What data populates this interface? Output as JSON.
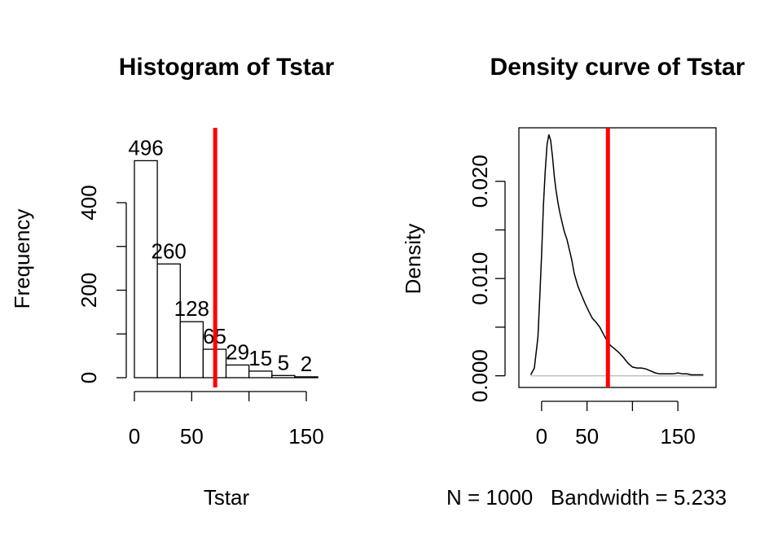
{
  "chart_data": [
    {
      "type": "bar",
      "title": "Histogram of Tstar",
      "xlabel": "Tstar",
      "ylabel": "Frequency",
      "bins": [
        [
          0,
          20
        ],
        [
          20,
          40
        ],
        [
          40,
          60
        ],
        [
          60,
          80
        ],
        [
          80,
          100
        ],
        [
          100,
          120
        ],
        [
          120,
          140
        ],
        [
          140,
          160
        ]
      ],
      "values": [
        496,
        260,
        128,
        65,
        29,
        15,
        5,
        2
      ],
      "xlim": [
        0,
        160
      ],
      "ylim": [
        0,
        500
      ],
      "xticks": [
        0,
        50,
        100,
        150
      ],
      "xtick_labels": [
        "0",
        "50",
        "",
        "150"
      ],
      "yticks": [
        0,
        100,
        200,
        300,
        400
      ],
      "ytick_labels": [
        "0",
        "",
        "200",
        "",
        "400"
      ],
      "vline": {
        "x": 70.5,
        "color": "#ff0000"
      }
    },
    {
      "type": "line",
      "title": "Density curve of Tstar",
      "xlabel": "N = 1000   Bandwidth = 5.233",
      "ylabel": "Density",
      "x": [
        -12,
        -8,
        -4,
        -2,
        0,
        2,
        4,
        6,
        8,
        10,
        12,
        14,
        16,
        18,
        20,
        22,
        25,
        28,
        30,
        33,
        36,
        40,
        44,
        48,
        52,
        56,
        60,
        64,
        68,
        72,
        76,
        80,
        85,
        90,
        95,
        100,
        105,
        110,
        115,
        120,
        125,
        130,
        135,
        140,
        145,
        150,
        155,
        160,
        165,
        170,
        178
      ],
      "y": [
        0.0001,
        0.0008,
        0.004,
        0.008,
        0.0125,
        0.0175,
        0.021,
        0.0238,
        0.0248,
        0.0242,
        0.0225,
        0.0205,
        0.019,
        0.0178,
        0.0168,
        0.016,
        0.0148,
        0.014,
        0.0132,
        0.012,
        0.0105,
        0.0092,
        0.0083,
        0.0074,
        0.0066,
        0.0059,
        0.0055,
        0.005,
        0.0043,
        0.0036,
        0.0031,
        0.0028,
        0.0024,
        0.0019,
        0.0013,
        0.0009,
        0.0008,
        0.0008,
        0.0007,
        0.0005,
        0.0003,
        0.0002,
        0.0002,
        0.0002,
        0.0002,
        0.0003,
        0.0002,
        0.0002,
        0.0001,
        0.0001,
        0.0001
      ],
      "xlim": [
        -25,
        192
      ],
      "ylim": [
        -0.0012,
        0.0255
      ],
      "xticks": [
        0,
        50,
        100,
        150
      ],
      "xtick_labels": [
        "0",
        "50",
        "",
        "150"
      ],
      "yticks": [
        0,
        0.005,
        0.01,
        0.015,
        0.02
      ],
      "ytick_labels": [
        "0.000",
        "",
        "0.010",
        "",
        "0.020"
      ],
      "vline": {
        "x": 73,
        "color": "#ff0000"
      },
      "baseline_color": "#bebebe"
    }
  ]
}
